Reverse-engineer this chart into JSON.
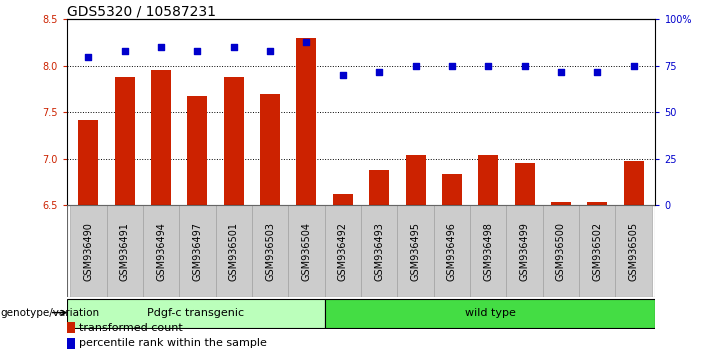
{
  "title": "GDS5320 / 10587231",
  "categories": [
    "GSM936490",
    "GSM936491",
    "GSM936494",
    "GSM936497",
    "GSM936501",
    "GSM936503",
    "GSM936504",
    "GSM936492",
    "GSM936493",
    "GSM936495",
    "GSM936496",
    "GSM936498",
    "GSM936499",
    "GSM936500",
    "GSM936502",
    "GSM936505"
  ],
  "bar_values": [
    7.42,
    7.88,
    7.96,
    7.68,
    7.88,
    7.7,
    8.3,
    6.62,
    6.88,
    7.04,
    6.84,
    7.04,
    6.96,
    6.54,
    6.54,
    6.98
  ],
  "dot_values": [
    80,
    83,
    85,
    83,
    85,
    83,
    88,
    70,
    72,
    75,
    75,
    75,
    75,
    72,
    72,
    75
  ],
  "bar_color": "#cc2200",
  "dot_color": "#0000cc",
  "ylim_left": [
    6.5,
    8.5
  ],
  "ylim_right": [
    0,
    100
  ],
  "yticks_left": [
    6.5,
    7.0,
    7.5,
    8.0,
    8.5
  ],
  "yticks_right": [
    0,
    25,
    50,
    75,
    100
  ],
  "ytick_labels_right": [
    "0",
    "25",
    "50",
    "75",
    "100%"
  ],
  "group1_label": "Pdgf-c transgenic",
  "group2_label": "wild type",
  "group1_count": 7,
  "group2_count": 9,
  "group1_color": "#bbffbb",
  "group2_color": "#44dd44",
  "xlabel_genotype": "genotype/variation",
  "legend_bar": "transformed count",
  "legend_dot": "percentile rank within the sample",
  "background_color": "#ffffff",
  "tick_area_color": "#cccccc",
  "title_fontsize": 10,
  "tick_fontsize": 7
}
